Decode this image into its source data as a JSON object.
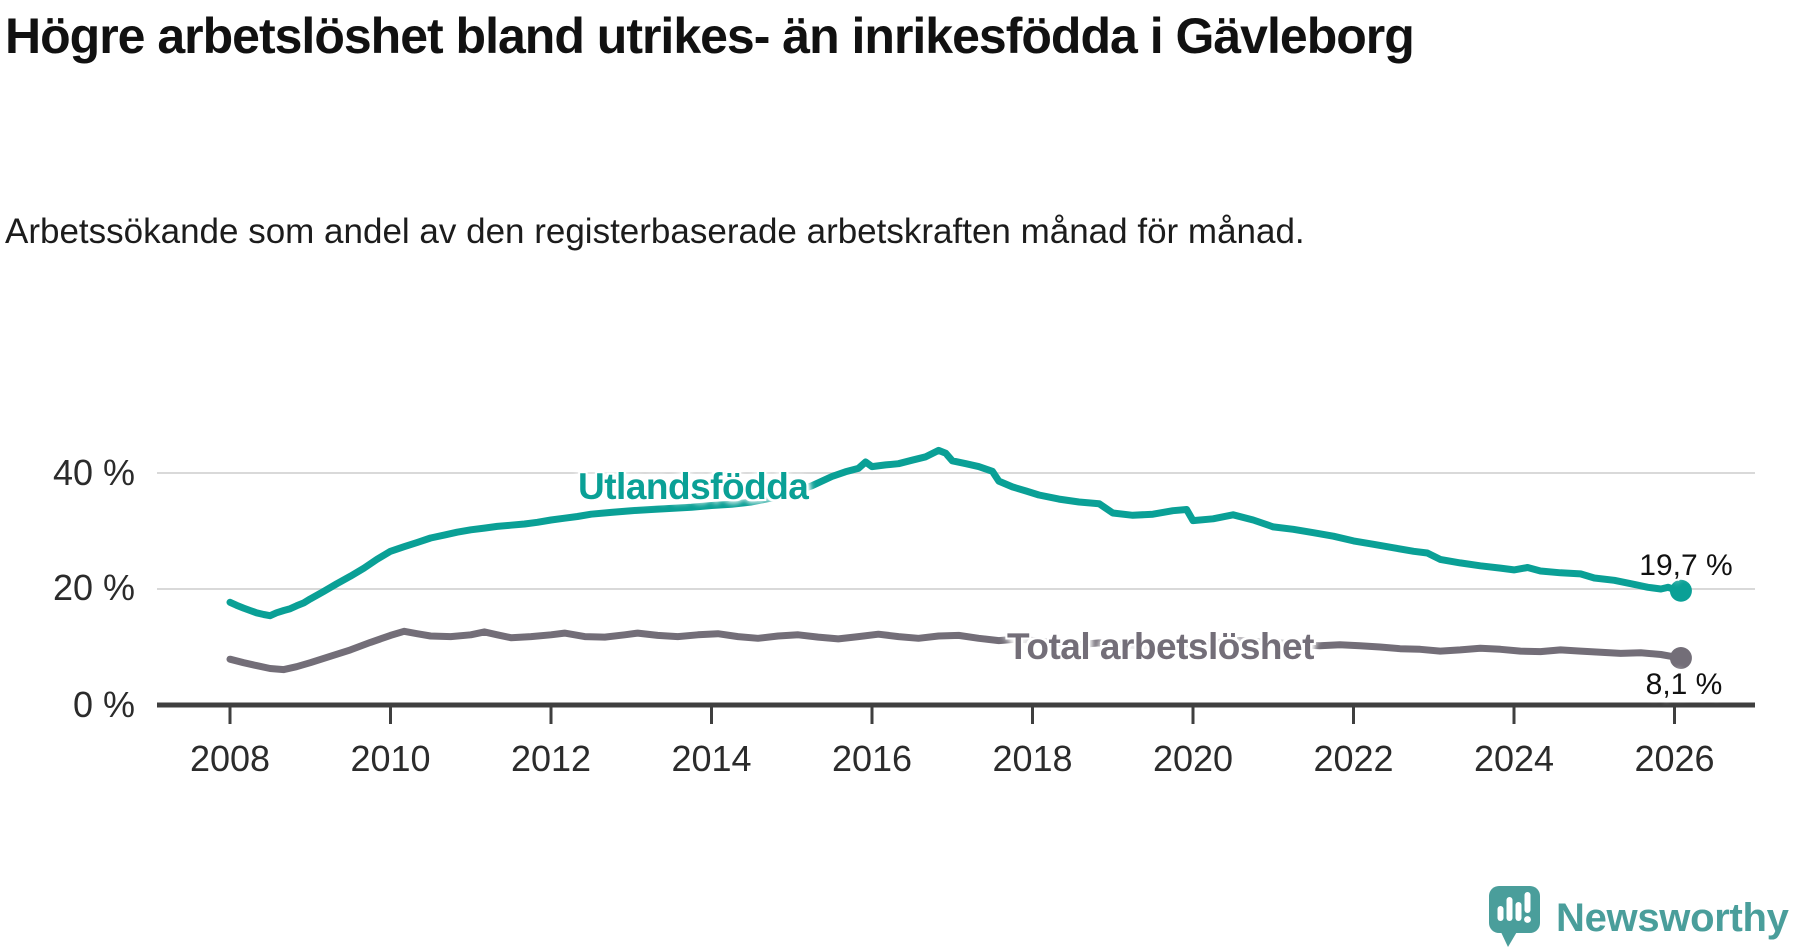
{
  "header": {
    "title": "Högre arbetslöshet bland utrikes- än inrikesfödda i Gävleborg",
    "subtitle": "Arbetssökande som andel av den registerbaserade arbetskraften månad för månad."
  },
  "chart_data": {
    "type": "line",
    "title": "Högre arbetslöshet bland utrikes- än inrikesfödda i Gävleborg",
    "subtitle": "Arbetssökande som andel av den registerbaserade arbetskraften månad för månad.",
    "unit": "%",
    "grid": "horizontal gridlines at 20 % and 40 %, dark baseline at 0 %",
    "legend": "inline series labels on the lines",
    "x_axis": {
      "range_years": [
        2007.1,
        2027.0
      ],
      "tick_years": [
        2008,
        2010,
        2012,
        2014,
        2016,
        2018,
        2020,
        2022,
        2024,
        2026
      ],
      "ticks": [
        "2008",
        "2010",
        "2012",
        "2014",
        "2016",
        "2018",
        "2020",
        "2022",
        "2024",
        "2026"
      ]
    },
    "y_axis": {
      "range": [
        0,
        48
      ],
      "tick_values": [
        0,
        20,
        40
      ],
      "ticks": [
        "0 %",
        "20 %",
        "40 %"
      ]
    },
    "series": [
      {
        "name": "Utlandsfödda",
        "color": "#0aa096",
        "end_label": "19,7 %",
        "end_value": 19.7,
        "points": [
          [
            2008.0,
            17.7
          ],
          [
            2008.08,
            17.2
          ],
          [
            2008.17,
            16.7
          ],
          [
            2008.25,
            16.3
          ],
          [
            2008.33,
            15.9
          ],
          [
            2008.42,
            15.6
          ],
          [
            2008.5,
            15.4
          ],
          [
            2008.58,
            15.9
          ],
          [
            2008.67,
            16.3
          ],
          [
            2008.75,
            16.6
          ],
          [
            2008.83,
            17.1
          ],
          [
            2008.92,
            17.6
          ],
          [
            2009.0,
            18.3
          ],
          [
            2009.17,
            19.6
          ],
          [
            2009.33,
            20.9
          ],
          [
            2009.5,
            22.2
          ],
          [
            2009.67,
            23.6
          ],
          [
            2009.83,
            25.1
          ],
          [
            2010.0,
            26.5
          ],
          [
            2010.17,
            27.3
          ],
          [
            2010.33,
            28.0
          ],
          [
            2010.5,
            28.8
          ],
          [
            2010.67,
            29.3
          ],
          [
            2010.83,
            29.8
          ],
          [
            2011.0,
            30.2
          ],
          [
            2011.17,
            30.5
          ],
          [
            2011.33,
            30.8
          ],
          [
            2011.5,
            31.0
          ],
          [
            2011.67,
            31.2
          ],
          [
            2011.83,
            31.5
          ],
          [
            2012.0,
            31.9
          ],
          [
            2012.17,
            32.2
          ],
          [
            2012.33,
            32.5
          ],
          [
            2012.5,
            32.9
          ],
          [
            2012.75,
            33.2
          ],
          [
            2013.0,
            33.5
          ],
          [
            2013.25,
            33.7
          ],
          [
            2013.5,
            33.9
          ],
          [
            2013.75,
            34.1
          ],
          [
            2014.0,
            34.4
          ],
          [
            2014.25,
            34.6
          ],
          [
            2014.5,
            35.0
          ],
          [
            2014.75,
            35.7
          ],
          [
            2015.0,
            36.6
          ],
          [
            2015.25,
            37.8
          ],
          [
            2015.5,
            39.4
          ],
          [
            2015.67,
            40.2
          ],
          [
            2015.83,
            40.8
          ],
          [
            2015.92,
            41.9
          ],
          [
            2016.0,
            41.1
          ],
          [
            2016.17,
            41.4
          ],
          [
            2016.33,
            41.6
          ],
          [
            2016.5,
            42.2
          ],
          [
            2016.67,
            42.8
          ],
          [
            2016.83,
            43.9
          ],
          [
            2016.92,
            43.4
          ],
          [
            2017.0,
            42.1
          ],
          [
            2017.17,
            41.6
          ],
          [
            2017.33,
            41.1
          ],
          [
            2017.5,
            40.3
          ],
          [
            2017.58,
            38.6
          ],
          [
            2017.75,
            37.6
          ],
          [
            2017.92,
            36.9
          ],
          [
            2018.08,
            36.2
          ],
          [
            2018.33,
            35.5
          ],
          [
            2018.58,
            35.0
          ],
          [
            2018.83,
            34.7
          ],
          [
            2019.0,
            33.1
          ],
          [
            2019.25,
            32.7
          ],
          [
            2019.5,
            32.9
          ],
          [
            2019.75,
            33.5
          ],
          [
            2019.92,
            33.7
          ],
          [
            2020.0,
            31.8
          ],
          [
            2020.25,
            32.1
          ],
          [
            2020.5,
            32.8
          ],
          [
            2020.75,
            31.9
          ],
          [
            2021.0,
            30.7
          ],
          [
            2021.25,
            30.3
          ],
          [
            2021.5,
            29.7
          ],
          [
            2021.75,
            29.1
          ],
          [
            2022.0,
            28.3
          ],
          [
            2022.25,
            27.7
          ],
          [
            2022.5,
            27.1
          ],
          [
            2022.75,
            26.5
          ],
          [
            2022.92,
            26.2
          ],
          [
            2023.08,
            25.1
          ],
          [
            2023.33,
            24.5
          ],
          [
            2023.58,
            24.0
          ],
          [
            2023.83,
            23.6
          ],
          [
            2024.0,
            23.3
          ],
          [
            2024.17,
            23.7
          ],
          [
            2024.33,
            23.1
          ],
          [
            2024.58,
            22.8
          ],
          [
            2024.83,
            22.6
          ],
          [
            2025.0,
            21.9
          ],
          [
            2025.25,
            21.5
          ],
          [
            2025.5,
            20.8
          ],
          [
            2025.67,
            20.3
          ],
          [
            2025.83,
            20.0
          ],
          [
            2025.92,
            20.3
          ],
          [
            2026.0,
            19.9
          ],
          [
            2026.08,
            19.7
          ]
        ]
      },
      {
        "name": "Total arbetslöshet",
        "color": "#736e78",
        "end_label": "8,1 %",
        "end_value": 8.1,
        "points": [
          [
            2008.0,
            7.9
          ],
          [
            2008.17,
            7.3
          ],
          [
            2008.33,
            6.8
          ],
          [
            2008.5,
            6.3
          ],
          [
            2008.67,
            6.1
          ],
          [
            2008.83,
            6.6
          ],
          [
            2009.0,
            7.3
          ],
          [
            2009.25,
            8.4
          ],
          [
            2009.5,
            9.5
          ],
          [
            2009.75,
            10.8
          ],
          [
            2010.0,
            12.0
          ],
          [
            2010.17,
            12.7
          ],
          [
            2010.33,
            12.3
          ],
          [
            2010.5,
            11.9
          ],
          [
            2010.75,
            11.8
          ],
          [
            2011.0,
            12.1
          ],
          [
            2011.17,
            12.6
          ],
          [
            2011.33,
            12.1
          ],
          [
            2011.5,
            11.6
          ],
          [
            2011.75,
            11.8
          ],
          [
            2012.0,
            12.1
          ],
          [
            2012.17,
            12.4
          ],
          [
            2012.42,
            11.8
          ],
          [
            2012.67,
            11.7
          ],
          [
            2012.92,
            12.1
          ],
          [
            2013.08,
            12.4
          ],
          [
            2013.33,
            12.0
          ],
          [
            2013.58,
            11.8
          ],
          [
            2013.83,
            12.1
          ],
          [
            2014.08,
            12.3
          ],
          [
            2014.33,
            11.8
          ],
          [
            2014.58,
            11.5
          ],
          [
            2014.83,
            11.9
          ],
          [
            2015.08,
            12.1
          ],
          [
            2015.33,
            11.7
          ],
          [
            2015.58,
            11.4
          ],
          [
            2015.83,
            11.8
          ],
          [
            2016.08,
            12.2
          ],
          [
            2016.33,
            11.8
          ],
          [
            2016.58,
            11.5
          ],
          [
            2016.83,
            11.9
          ],
          [
            2017.08,
            12.0
          ],
          [
            2017.33,
            11.5
          ],
          [
            2017.58,
            11.1
          ],
          [
            2017.83,
            11.4
          ],
          [
            2018.08,
            11.0
          ],
          [
            2018.33,
            10.7
          ],
          [
            2018.58,
            10.4
          ],
          [
            2018.83,
            10.7
          ],
          [
            2019.08,
            10.5
          ],
          [
            2019.33,
            10.2
          ],
          [
            2019.58,
            10.4
          ],
          [
            2019.83,
            10.6
          ],
          [
            2020.08,
            10.4
          ],
          [
            2020.33,
            10.8
          ],
          [
            2020.58,
            11.1
          ],
          [
            2020.83,
            10.9
          ],
          [
            2021.08,
            10.7
          ],
          [
            2021.33,
            10.4
          ],
          [
            2021.58,
            10.2
          ],
          [
            2021.83,
            10.4
          ],
          [
            2022.08,
            10.2
          ],
          [
            2022.33,
            10.0
          ],
          [
            2022.58,
            9.7
          ],
          [
            2022.83,
            9.6
          ],
          [
            2023.08,
            9.3
          ],
          [
            2023.33,
            9.5
          ],
          [
            2023.58,
            9.8
          ],
          [
            2023.83,
            9.6
          ],
          [
            2024.08,
            9.3
          ],
          [
            2024.33,
            9.2
          ],
          [
            2024.58,
            9.5
          ],
          [
            2024.83,
            9.3
          ],
          [
            2025.08,
            9.1
          ],
          [
            2025.33,
            8.9
          ],
          [
            2025.58,
            9.0
          ],
          [
            2025.83,
            8.7
          ],
          [
            2026.0,
            8.3
          ],
          [
            2026.08,
            8.1
          ]
        ]
      }
    ]
  },
  "branding": {
    "logo_text": "Newsworthy",
    "logo_color": "#4a9e9b"
  },
  "colors": {
    "series_foreign_born": "#0aa096",
    "series_total": "#736e78",
    "gridline": "#d9d9d9",
    "axis": "#3f3f3f",
    "text": "#111111",
    "axis_labels": "#2b2b2b"
  }
}
